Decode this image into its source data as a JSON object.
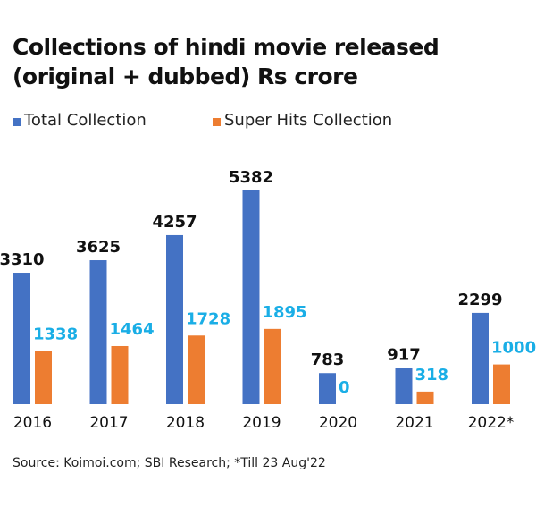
{
  "chart_data": {
    "type": "bar",
    "title": "Collections of hindi movie released (original + dubbed) Rs crore",
    "title_lines": [
      "Collections of hindi movie released",
      "(original + dubbed) Rs crore"
    ],
    "categories": [
      "2016",
      "2017",
      "2018",
      "2019",
      "2020",
      "2021",
      "2022*"
    ],
    "series": [
      {
        "name": "Total Collection",
        "color": "#4472C4",
        "label_color": "#111111",
        "values": [
          3310,
          3625,
          4257,
          5382,
          783,
          917,
          2299
        ]
      },
      {
        "name": "Super Hits Collection",
        "color": "#ED7D31",
        "label_color": "#1AAEE6",
        "values": [
          1338,
          1464,
          1728,
          1895,
          0,
          318,
          1000
        ]
      }
    ],
    "xlabel": "",
    "ylabel": "",
    "ylim": [
      0,
      5382
    ],
    "grid": false,
    "legend_position": "top-left",
    "source": "Source: Koimoi.com; SBI Research; *Till 23 Aug'22"
  }
}
